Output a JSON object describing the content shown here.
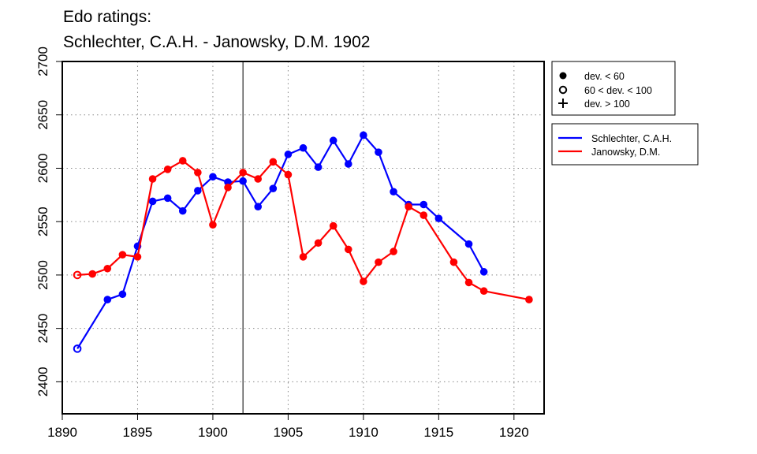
{
  "chart_data": {
    "type": "line",
    "title": "Edo ratings:",
    "subtitle": "Schlechter, C.A.H. - Janowsky, D.M. 1902",
    "xlabel": "",
    "ylabel": "",
    "xlim": [
      1890,
      1922
    ],
    "ylim": [
      2370,
      2700
    ],
    "x_ticks": [
      1890,
      1895,
      1900,
      1905,
      1910,
      1915,
      1920
    ],
    "y_ticks": [
      2400,
      2450,
      2500,
      2550,
      2600,
      2650,
      2700
    ],
    "grid": true,
    "reference_x": 1902,
    "deviation_legend": [
      {
        "symbol": "filled-circle",
        "label": "dev. < 60"
      },
      {
        "symbol": "open-circle",
        "label": "60 < dev. < 100"
      },
      {
        "symbol": "plus",
        "label": "dev. > 100"
      }
    ],
    "series": [
      {
        "name": "Schlechter, C.A.H.",
        "color": "#0000ff",
        "points": [
          {
            "x": 1891,
            "y": 2431,
            "marker": "open-circle"
          },
          {
            "x": 1893,
            "y": 2477,
            "marker": "filled-circle"
          },
          {
            "x": 1894,
            "y": 2482,
            "marker": "filled-circle"
          },
          {
            "x": 1895,
            "y": 2527,
            "marker": "filled-circle"
          },
          {
            "x": 1896,
            "y": 2569,
            "marker": "filled-circle"
          },
          {
            "x": 1897,
            "y": 2572,
            "marker": "filled-circle"
          },
          {
            "x": 1898,
            "y": 2560,
            "marker": "filled-circle"
          },
          {
            "x": 1899,
            "y": 2579,
            "marker": "filled-circle"
          },
          {
            "x": 1900,
            "y": 2592,
            "marker": "filled-circle"
          },
          {
            "x": 1901,
            "y": 2587,
            "marker": "filled-circle"
          },
          {
            "x": 1902,
            "y": 2588,
            "marker": "filled-circle"
          },
          {
            "x": 1903,
            "y": 2564,
            "marker": "filled-circle"
          },
          {
            "x": 1904,
            "y": 2581,
            "marker": "filled-circle"
          },
          {
            "x": 1905,
            "y": 2613,
            "marker": "filled-circle"
          },
          {
            "x": 1906,
            "y": 2619,
            "marker": "filled-circle"
          },
          {
            "x": 1907,
            "y": 2601,
            "marker": "filled-circle"
          },
          {
            "x": 1908,
            "y": 2626,
            "marker": "filled-circle"
          },
          {
            "x": 1909,
            "y": 2604,
            "marker": "filled-circle"
          },
          {
            "x": 1910,
            "y": 2631,
            "marker": "filled-circle"
          },
          {
            "x": 1911,
            "y": 2615,
            "marker": "filled-circle"
          },
          {
            "x": 1912,
            "y": 2578,
            "marker": "filled-circle"
          },
          {
            "x": 1913,
            "y": 2566,
            "marker": "filled-circle"
          },
          {
            "x": 1914,
            "y": 2566,
            "marker": "filled-circle"
          },
          {
            "x": 1915,
            "y": 2553,
            "marker": "filled-circle"
          },
          {
            "x": 1917,
            "y": 2529,
            "marker": "filled-circle"
          },
          {
            "x": 1918,
            "y": 2503,
            "marker": "filled-circle"
          }
        ]
      },
      {
        "name": "Janowsky, D.M.",
        "color": "#ff0000",
        "points": [
          {
            "x": 1891,
            "y": 2500,
            "marker": "open-circle"
          },
          {
            "x": 1892,
            "y": 2501,
            "marker": "filled-circle"
          },
          {
            "x": 1893,
            "y": 2506,
            "marker": "filled-circle"
          },
          {
            "x": 1894,
            "y": 2519,
            "marker": "filled-circle"
          },
          {
            "x": 1895,
            "y": 2517,
            "marker": "filled-circle"
          },
          {
            "x": 1896,
            "y": 2590,
            "marker": "filled-circle"
          },
          {
            "x": 1897,
            "y": 2599,
            "marker": "filled-circle"
          },
          {
            "x": 1898,
            "y": 2607,
            "marker": "filled-circle"
          },
          {
            "x": 1899,
            "y": 2596,
            "marker": "filled-circle"
          },
          {
            "x": 1900,
            "y": 2547,
            "marker": "filled-circle"
          },
          {
            "x": 1901,
            "y": 2582,
            "marker": "filled-circle"
          },
          {
            "x": 1902,
            "y": 2596,
            "marker": "filled-circle"
          },
          {
            "x": 1903,
            "y": 2590,
            "marker": "filled-circle"
          },
          {
            "x": 1904,
            "y": 2606,
            "marker": "filled-circle"
          },
          {
            "x": 1905,
            "y": 2594,
            "marker": "filled-circle"
          },
          {
            "x": 1906,
            "y": 2517,
            "marker": "filled-circle"
          },
          {
            "x": 1907,
            "y": 2530,
            "marker": "filled-circle"
          },
          {
            "x": 1908,
            "y": 2546,
            "marker": "filled-circle"
          },
          {
            "x": 1909,
            "y": 2524,
            "marker": "filled-circle"
          },
          {
            "x": 1910,
            "y": 2494,
            "marker": "filled-circle"
          },
          {
            "x": 1911,
            "y": 2512,
            "marker": "filled-circle"
          },
          {
            "x": 1912,
            "y": 2522,
            "marker": "filled-circle"
          },
          {
            "x": 1913,
            "y": 2564,
            "marker": "filled-circle"
          },
          {
            "x": 1914,
            "y": 2556,
            "marker": "filled-circle"
          },
          {
            "x": 1916,
            "y": 2512,
            "marker": "filled-circle"
          },
          {
            "x": 1917,
            "y": 2493,
            "marker": "filled-circle"
          },
          {
            "x": 1918,
            "y": 2485,
            "marker": "filled-circle"
          },
          {
            "x": 1921,
            "y": 2477,
            "marker": "filled-circle"
          }
        ]
      }
    ]
  }
}
